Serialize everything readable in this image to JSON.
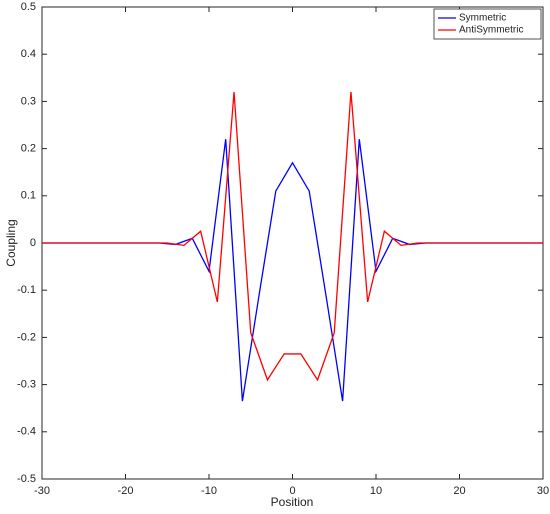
{
  "chart_data": {
    "type": "line",
    "xlabel": "Position",
    "ylabel": "Coupling",
    "xlim": [
      -30,
      30
    ],
    "ylim": [
      -0.5,
      0.5
    ],
    "xticks": [
      -30,
      -20,
      -10,
      0,
      10,
      20,
      30
    ],
    "yticks": [
      -0.5,
      -0.4,
      -0.3,
      -0.2,
      -0.1,
      0,
      0.1,
      0.2,
      0.3,
      0.4,
      0.5
    ],
    "legend": "top-right",
    "series": [
      {
        "name": "Symmetric",
        "color": "#0000ff",
        "x": [
          -30,
          -28,
          -26,
          -24,
          -22,
          -20,
          -18,
          -16,
          -14,
          -12,
          -10,
          -8,
          -6,
          -4,
          -2,
          0,
          2,
          4,
          6,
          8,
          10,
          12,
          14,
          16,
          18,
          20,
          22,
          24,
          26,
          28,
          30
        ],
        "values": [
          0,
          0,
          0,
          0,
          0,
          0,
          0,
          0,
          -0.003,
          0.01,
          -0.06,
          0.22,
          -0.335,
          -0.11,
          0.11,
          0.17,
          0.11,
          -0.11,
          -0.335,
          0.22,
          -0.06,
          0.01,
          -0.003,
          0,
          0,
          0,
          0,
          0,
          0,
          0,
          0
        ]
      },
      {
        "name": "AntiSymmetric",
        "color": "#ff0000",
        "x": [
          -30,
          -29,
          -27,
          -25,
          -23,
          -21,
          -19,
          -17,
          -15,
          -13,
          -11,
          -9,
          -7,
          -5,
          -3,
          -1,
          1,
          3,
          5,
          7,
          9,
          11,
          13,
          15,
          17,
          19,
          21,
          23,
          25,
          27,
          29,
          30
        ],
        "values": [
          0,
          0,
          0,
          0,
          0,
          0,
          0,
          0,
          0,
          -0.005,
          0.025,
          -0.125,
          0.32,
          -0.19,
          -0.29,
          -0.235,
          -0.235,
          -0.29,
          -0.19,
          0.32,
          -0.125,
          0.025,
          -0.005,
          0,
          0,
          0,
          0,
          0,
          0,
          0,
          0,
          0
        ]
      }
    ]
  }
}
